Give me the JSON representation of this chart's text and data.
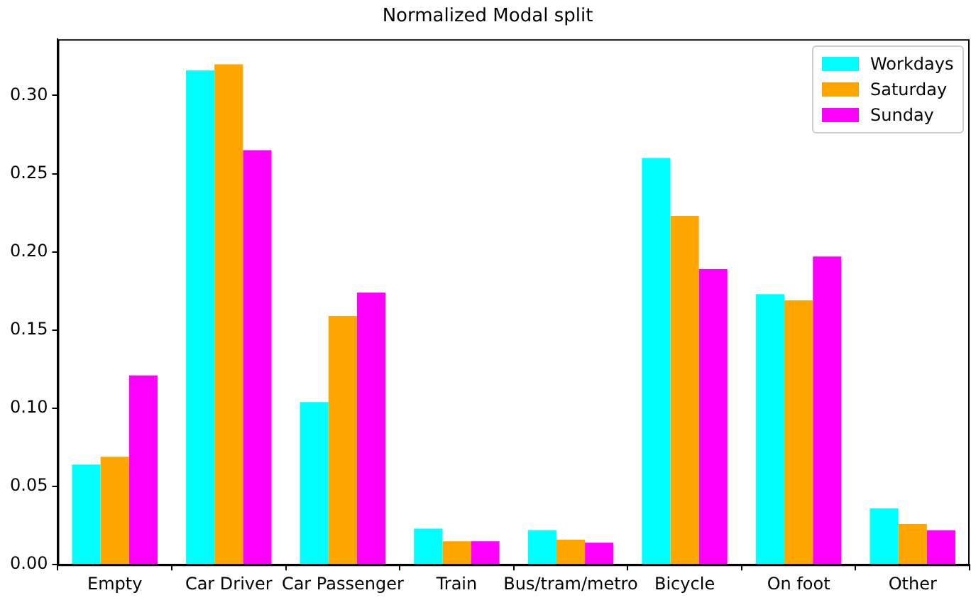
{
  "chart_data": {
    "type": "bar",
    "title": "Normalized Modal split",
    "categories": [
      "Empty",
      "Car Driver",
      "Car Passenger",
      "Train",
      "Bus/tram/metro",
      "Bicycle",
      "On foot",
      "Other"
    ],
    "series": [
      {
        "name": "Workdays",
        "color": "#00ffff",
        "values": [
          0.064,
          0.316,
          0.104,
          0.023,
          0.022,
          0.26,
          0.173,
          0.036
        ]
      },
      {
        "name": "Saturday",
        "color": "#ffa500",
        "values": [
          0.069,
          0.32,
          0.159,
          0.015,
          0.016,
          0.223,
          0.169,
          0.026
        ]
      },
      {
        "name": "Sunday",
        "color": "#ff00ff",
        "values": [
          0.121,
          0.265,
          0.174,
          0.015,
          0.014,
          0.189,
          0.197,
          0.022
        ]
      }
    ],
    "ylim": [
      0,
      0.336
    ],
    "yticks": [
      {
        "value": 0,
        "label": "0.00"
      },
      {
        "value": 0.05,
        "label": "0.05"
      },
      {
        "value": 0.1,
        "label": "0.10"
      },
      {
        "value": 0.15,
        "label": "0.15"
      },
      {
        "value": 0.2,
        "label": "0.20"
      },
      {
        "value": 0.25,
        "label": "0.25"
      },
      {
        "value": 0.3,
        "label": "0.30"
      }
    ],
    "grid": false,
    "legend": "top right"
  }
}
